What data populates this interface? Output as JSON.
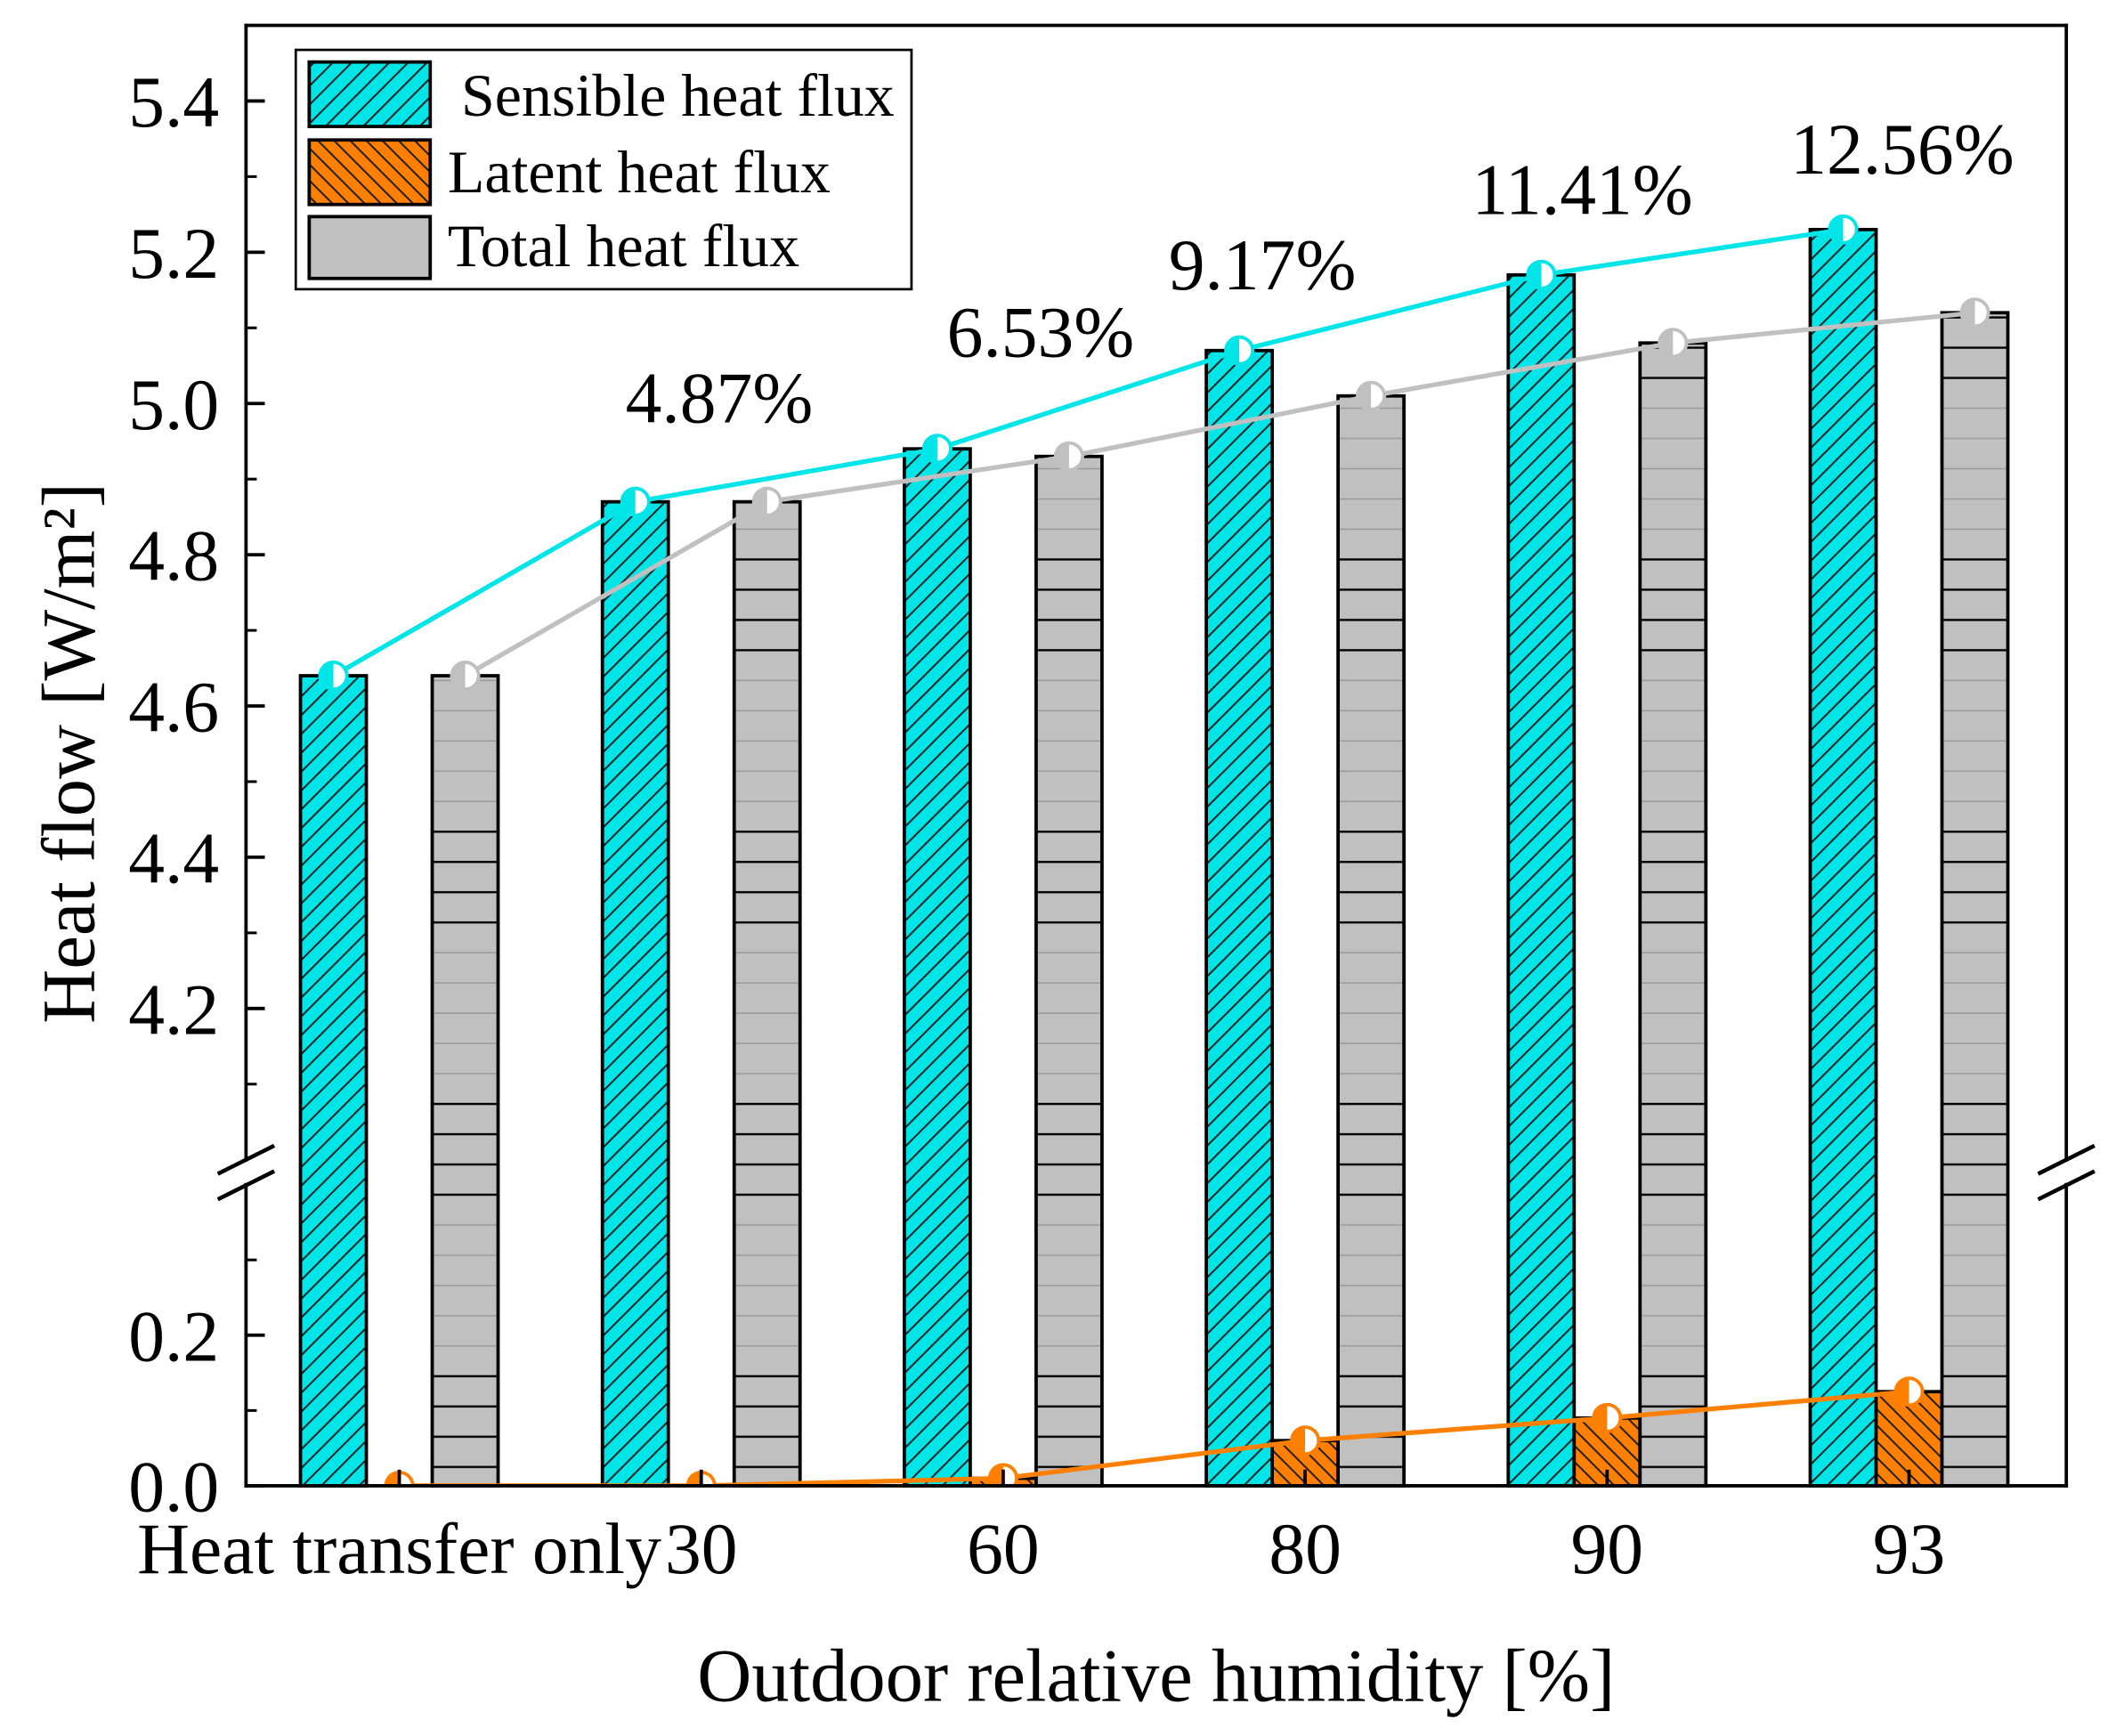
{
  "chart_data": {
    "type": "bar",
    "categories": [
      "Heat transfer only",
      "30",
      "60",
      "80",
      "90",
      "93"
    ],
    "series": [
      {
        "name": "Sensible heat flux",
        "color": "#00e5e8",
        "values": [
          4.64,
          4.87,
          4.94,
          5.07,
          5.17,
          5.23
        ]
      },
      {
        "name": "Latent heat flux",
        "color": "#ff8000",
        "values": [
          0.0,
          0.0,
          0.01,
          0.06,
          0.09,
          0.125
        ]
      },
      {
        "name": "Total heat flux",
        "color": "#c0c0c0",
        "values": [
          4.64,
          4.87,
          4.93,
          5.01,
          5.08,
          5.12
        ]
      }
    ],
    "annotations": [
      {
        "category_index": 1,
        "text": "4.87%"
      },
      {
        "category_index": 2,
        "text": "6.53%"
      },
      {
        "category_index": 3,
        "text": "9.17%"
      },
      {
        "category_index": 4,
        "text": "11.41%"
      },
      {
        "category_index": 5,
        "text": "12.56%"
      }
    ],
    "xlabel": "Outdoor relative humidity [%]",
    "ylabel": "Heat flow [W/m²]",
    "y_break": {
      "lower_range": [
        0.0,
        0.4
      ],
      "upper_range": [
        4.0,
        5.5
      ]
    },
    "yticks_upper": [
      "4.2",
      "4.4",
      "4.6",
      "4.8",
      "5.0",
      "5.2",
      "5.4"
    ],
    "yticks_lower": [
      "0.0",
      "0.2"
    ],
    "legend": "top-left",
    "grid": false
  }
}
